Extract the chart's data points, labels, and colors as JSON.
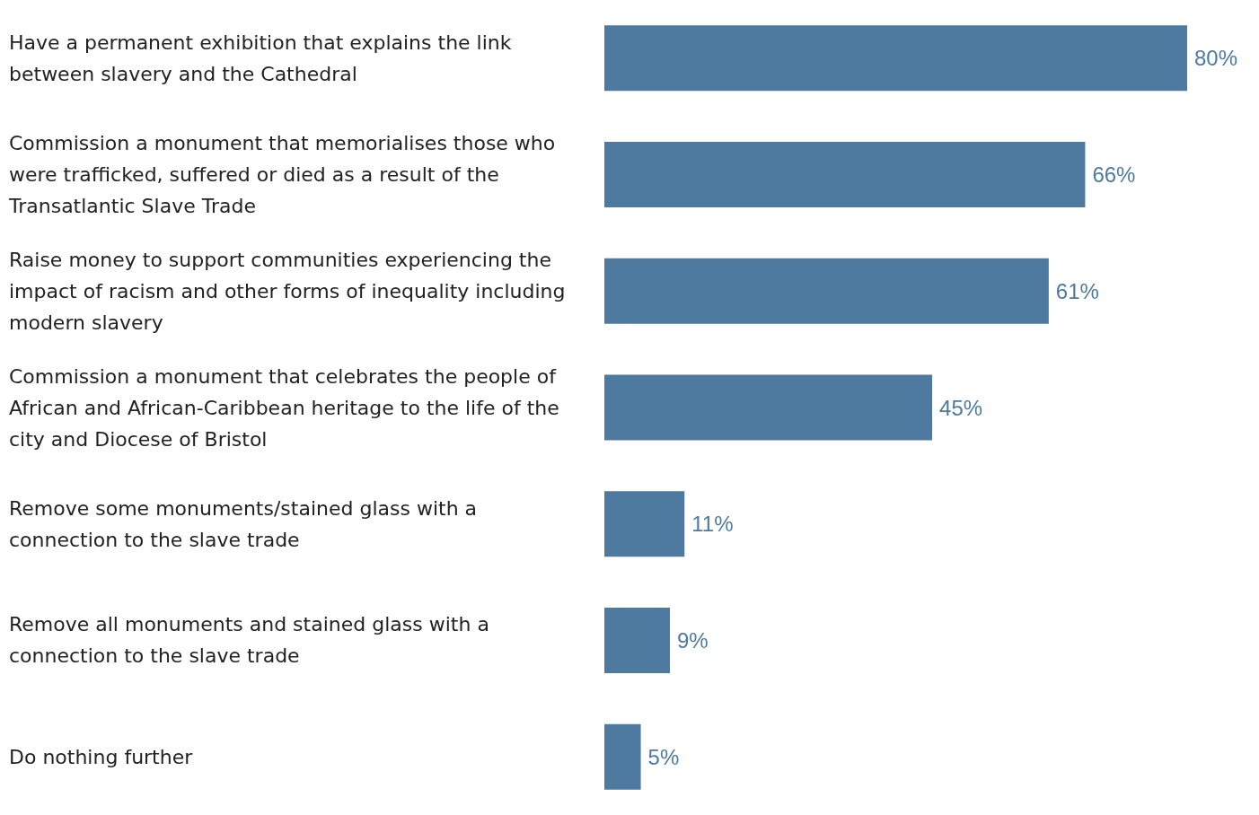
{
  "chart_data": {
    "type": "bar",
    "orientation": "horizontal",
    "categories": [
      "Have a permanent exhibition that explains the link between slavery and the Cathedral",
      "Commission a monument that memorialises those who were trafficked, suffered or died as a result of the Transatlantic Slave Trade",
      "Raise money to support communities experiencing the impact of racism and other forms of inequality including modern slavery",
      "Commission a monument that celebrates the people of African and African-Caribbean heritage to the life of the city and Diocese of Bristol",
      "Remove some monuments/stained glass with a connection to the slave trade",
      "Remove all monuments and stained glass with a connection to the slave trade",
      "Do nothing further"
    ],
    "values": [
      80,
      66,
      61,
      45,
      11,
      9,
      5
    ],
    "value_labels": [
      "80%",
      "66%",
      "61%",
      "45%",
      "11%",
      "9%",
      "5%"
    ],
    "color": "#4d7a9e"
  }
}
